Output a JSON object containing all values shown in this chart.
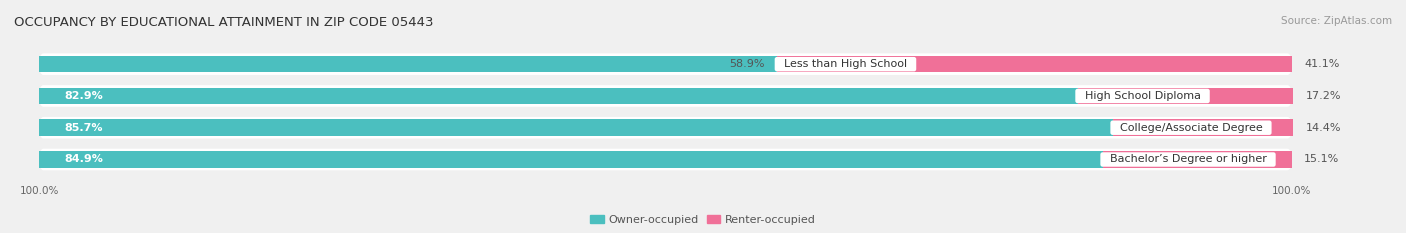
{
  "title": "OCCUPANCY BY EDUCATIONAL ATTAINMENT IN ZIP CODE 05443",
  "source": "Source: ZipAtlas.com",
  "categories": [
    "Less than High School",
    "High School Diploma",
    "College/Associate Degree",
    "Bachelor’s Degree or higher"
  ],
  "owner_values": [
    58.9,
    82.9,
    85.7,
    84.9
  ],
  "renter_values": [
    41.1,
    17.2,
    14.4,
    15.1
  ],
  "owner_color": "#4bbfbf",
  "renter_color": "#f07098",
  "owner_label": "Owner-occupied",
  "renter_label": "Renter-occupied",
  "background_color": "#f0f0f0",
  "row_bg_color": "#e0e0e8",
  "title_fontsize": 9.5,
  "source_fontsize": 7.5,
  "value_fontsize": 8,
  "cat_fontsize": 8,
  "legend_fontsize": 8,
  "axis_tick_fontsize": 7.5
}
